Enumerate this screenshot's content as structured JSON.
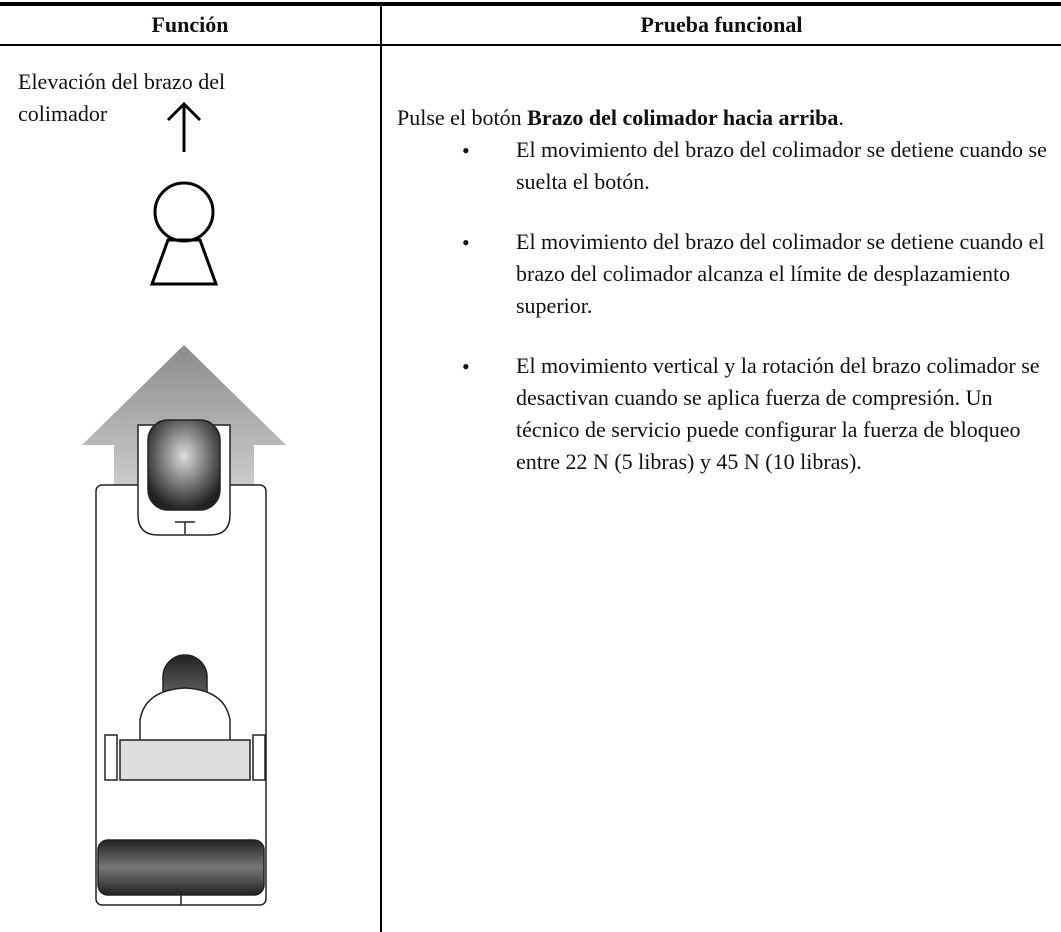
{
  "table": {
    "headers": [
      "Función",
      "Prueba funcional"
    ],
    "rows": [
      {
        "function": "Elevación del brazo del colimador",
        "instruction_prefix": "Pulse el botón ",
        "instruction_button": "Brazo del colimador hacia arriba",
        "instruction_suffix": ".",
        "bullets": [
          "El movimiento del brazo del colimador se detiene cuando se suelta el botón.",
          "El movimiento del brazo del colimador se detiene cuando el brazo del colimador alcanza el límite de desplazamiento superior.",
          "El movimiento vertical y la rotación del brazo colimador se desactivan cuando se aplica fuerza de compresión. Un técnico de servicio puede configurar la fuerza de bloqueo entre 22 N (5 libras) y 45 N (10 libras)."
        ]
      }
    ]
  }
}
